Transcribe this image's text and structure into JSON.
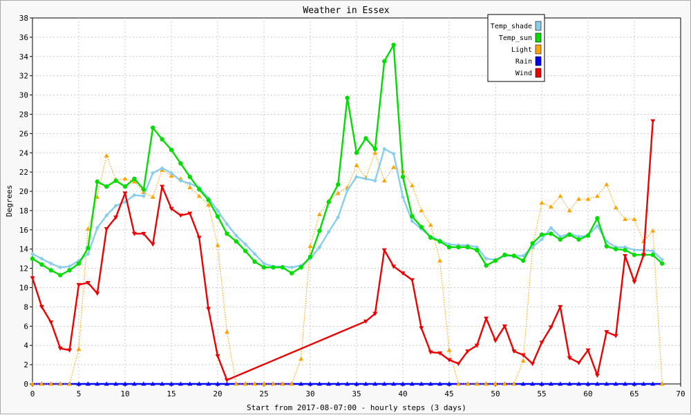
{
  "chart_data": {
    "type": "line",
    "title": "Weather in Essex",
    "xlabel": "Start from 2017-08-07:00 - hourly steps (3 days)",
    "ylabel": "Degrees",
    "xlim": [
      0,
      70
    ],
    "ylim": [
      0,
      38
    ],
    "x_ticks": [
      0,
      5,
      10,
      15,
      20,
      25,
      30,
      35,
      40,
      45,
      50,
      55,
      60,
      65,
      70
    ],
    "y_ticks": [
      0,
      2,
      4,
      6,
      8,
      10,
      12,
      14,
      16,
      18,
      20,
      22,
      24,
      26,
      28,
      30,
      32,
      34,
      36,
      38
    ],
    "grid": true,
    "legend_position": "top-right",
    "series": [
      {
        "name": "Temp_shade",
        "color": "#87ceeb",
        "marker": "diamond",
        "style": "solid",
        "x": [
          0,
          1,
          2,
          3,
          4,
          5,
          6,
          7,
          8,
          9,
          10,
          11,
          12,
          13,
          14,
          15,
          16,
          17,
          18,
          19,
          20,
          21,
          22,
          23,
          24,
          25,
          26,
          27,
          28,
          29,
          30,
          31,
          32,
          33,
          34,
          35,
          36,
          37,
          38,
          39,
          40,
          41,
          42,
          43,
          44,
          45,
          46,
          47,
          48,
          49,
          50,
          51,
          52,
          53,
          54,
          55,
          56,
          57,
          58,
          59,
          60,
          61,
          62,
          63,
          64,
          65,
          66,
          67,
          68
        ],
        "values": [
          13.5,
          13.0,
          12.5,
          12.1,
          12.2,
          12.8,
          13.5,
          16.2,
          17.5,
          18.5,
          18.9,
          19.6,
          19.5,
          21.9,
          22.4,
          21.9,
          21.1,
          20.8,
          20.4,
          19.3,
          18.0,
          16.6,
          15.4,
          14.5,
          13.5,
          12.5,
          12.2,
          12.2,
          12.1,
          12.3,
          13.0,
          14.2,
          15.8,
          17.3,
          20.1,
          21.5,
          21.3,
          21.1,
          24.4,
          23.9,
          19.4,
          16.9,
          16.1,
          15.3,
          14.9,
          14.5,
          14.4,
          14.4,
          14.2,
          13.0,
          12.9,
          13.3,
          13.3,
          13.3,
          14.2,
          15.0,
          16.2,
          15.3,
          15.6,
          15.3,
          15.4,
          16.4,
          14.8,
          14.2,
          14.2,
          13.9,
          13.9,
          13.8,
          12.9
        ]
      },
      {
        "name": "Temp_sun",
        "color": "#00dd00",
        "marker": "circle",
        "style": "solid",
        "x": [
          0,
          1,
          2,
          3,
          4,
          5,
          6,
          7,
          8,
          9,
          10,
          11,
          12,
          13,
          14,
          15,
          16,
          17,
          18,
          19,
          20,
          21,
          22,
          23,
          24,
          25,
          26,
          27,
          28,
          29,
          30,
          31,
          32,
          33,
          34,
          35,
          36,
          37,
          38,
          39,
          40,
          41,
          42,
          43,
          44,
          45,
          46,
          47,
          48,
          49,
          50,
          51,
          52,
          53,
          54,
          55,
          56,
          57,
          58,
          59,
          60,
          61,
          62,
          63,
          64,
          65,
          66,
          67,
          68
        ],
        "values": [
          13.0,
          12.4,
          11.8,
          11.3,
          11.8,
          12.5,
          14.1,
          21.0,
          20.5,
          21.1,
          20.5,
          21.3,
          20.2,
          26.6,
          25.4,
          24.3,
          22.9,
          21.5,
          20.2,
          19.1,
          17.4,
          15.6,
          14.8,
          13.8,
          12.7,
          12.1,
          12.1,
          12.1,
          11.5,
          12.1,
          13.2,
          15.9,
          18.9,
          20.7,
          29.7,
          24.0,
          25.5,
          24.4,
          33.5,
          35.2,
          21.5,
          17.4,
          16.3,
          15.2,
          14.8,
          14.2,
          14.2,
          14.2,
          13.9,
          12.3,
          12.8,
          13.4,
          13.3,
          12.8,
          14.6,
          15.5,
          15.6,
          15.0,
          15.5,
          15.0,
          15.4,
          17.2,
          14.3,
          14.0,
          13.9,
          13.4,
          13.4,
          13.4,
          12.5
        ]
      },
      {
        "name": "Light",
        "color": "#ffa500",
        "marker": "triangle",
        "style": "dotted",
        "x": [
          0,
          1,
          2,
          3,
          4,
          5,
          6,
          7,
          8,
          9,
          10,
          11,
          12,
          13,
          14,
          15,
          16,
          17,
          18,
          19,
          20,
          21,
          22,
          23,
          24,
          25,
          26,
          27,
          28,
          29,
          30,
          31,
          32,
          33,
          34,
          35,
          36,
          37,
          38,
          39,
          40,
          41,
          42,
          43,
          44,
          45,
          46,
          47,
          48,
          49,
          50,
          51,
          52,
          53,
          54,
          55,
          56,
          57,
          58,
          59,
          60,
          61,
          62,
          63,
          64,
          65,
          66,
          67,
          68
        ],
        "values": [
          0,
          0,
          0,
          0,
          0,
          3.6,
          16.1,
          19.4,
          23.7,
          21.2,
          21.3,
          21.0,
          19.9,
          19.4,
          22.2,
          21.6,
          21.3,
          20.4,
          19.5,
          18.6,
          14.4,
          5.4,
          0,
          0,
          0,
          0,
          0,
          0,
          0,
          2.6,
          14.3,
          17.6,
          19.0,
          19.8,
          20.4,
          22.7,
          21.4,
          24.0,
          21.1,
          22.5,
          22.1,
          20.6,
          18.0,
          16.5,
          12.8,
          3.5,
          0,
          0,
          0,
          0,
          0,
          0,
          0,
          2.4,
          14.2,
          18.8,
          18.4,
          19.5,
          18.0,
          19.2,
          19.2,
          19.5,
          20.7,
          18.3,
          17.1,
          17.1,
          14.8,
          15.9,
          0
        ]
      },
      {
        "name": "Rain",
        "color": "#0000ff",
        "marker": "triangle",
        "style": "solid",
        "x": [
          0,
          1,
          2,
          3,
          4,
          5,
          6,
          7,
          8,
          9,
          10,
          11,
          12,
          13,
          14,
          15,
          16,
          17,
          18,
          19,
          20,
          21,
          22,
          23,
          24,
          25,
          26,
          27,
          28,
          29,
          30,
          31,
          32,
          33,
          34,
          35,
          36,
          37,
          38,
          39,
          40,
          41,
          42,
          43,
          44,
          45,
          46,
          47,
          48,
          49,
          50,
          51,
          52,
          53,
          54,
          55,
          56,
          57,
          58,
          59,
          60,
          61,
          62,
          63,
          64,
          65,
          66,
          67,
          68
        ],
        "values": [
          0,
          0,
          0,
          0,
          0,
          0,
          0,
          0,
          0,
          0,
          0,
          0,
          0,
          0,
          0,
          0,
          0,
          0,
          0,
          0,
          0,
          0,
          0,
          0,
          0,
          0,
          0,
          0,
          0,
          0,
          0,
          0,
          0,
          0,
          0,
          0,
          0,
          0,
          0,
          0,
          0,
          0,
          0,
          0,
          0,
          0,
          0,
          0,
          0,
          0,
          0,
          0,
          0,
          0,
          0,
          0,
          0,
          0,
          0,
          0,
          0,
          0,
          0,
          0,
          0,
          0,
          0,
          0,
          0
        ]
      },
      {
        "name": "Wind",
        "color": "#ee0000",
        "marker": "triangle-down",
        "style": "solid",
        "x": [
          0,
          1,
          2,
          3,
          4,
          5,
          6,
          7,
          8,
          9,
          10,
          11,
          12,
          13,
          14,
          15,
          16,
          17,
          18,
          19,
          20,
          21,
          36,
          37,
          38,
          39,
          40,
          41,
          42,
          43,
          44,
          45,
          46,
          47,
          48,
          49,
          50,
          51,
          52,
          53,
          54,
          55,
          56,
          57,
          58,
          59,
          60,
          61,
          62,
          63,
          64,
          65,
          66,
          67
        ],
        "values": [
          11.0,
          8.0,
          6.4,
          3.7,
          3.5,
          10.3,
          10.5,
          9.4,
          16.1,
          17.3,
          19.8,
          15.6,
          15.6,
          14.5,
          20.5,
          18.2,
          17.5,
          17.7,
          15.2,
          7.8,
          2.9,
          0.4,
          6.5,
          7.3,
          13.9,
          12.2,
          11.5,
          10.8,
          5.8,
          3.3,
          3.2,
          2.5,
          2.1,
          3.4,
          4.0,
          6.8,
          4.5,
          6.0,
          3.4,
          3.0,
          2.1,
          4.3,
          5.9,
          8.0,
          2.7,
          2.2,
          3.5,
          0.9,
          5.4,
          5.0,
          13.3,
          10.6,
          13.4,
          27.3
        ]
      }
    ]
  }
}
